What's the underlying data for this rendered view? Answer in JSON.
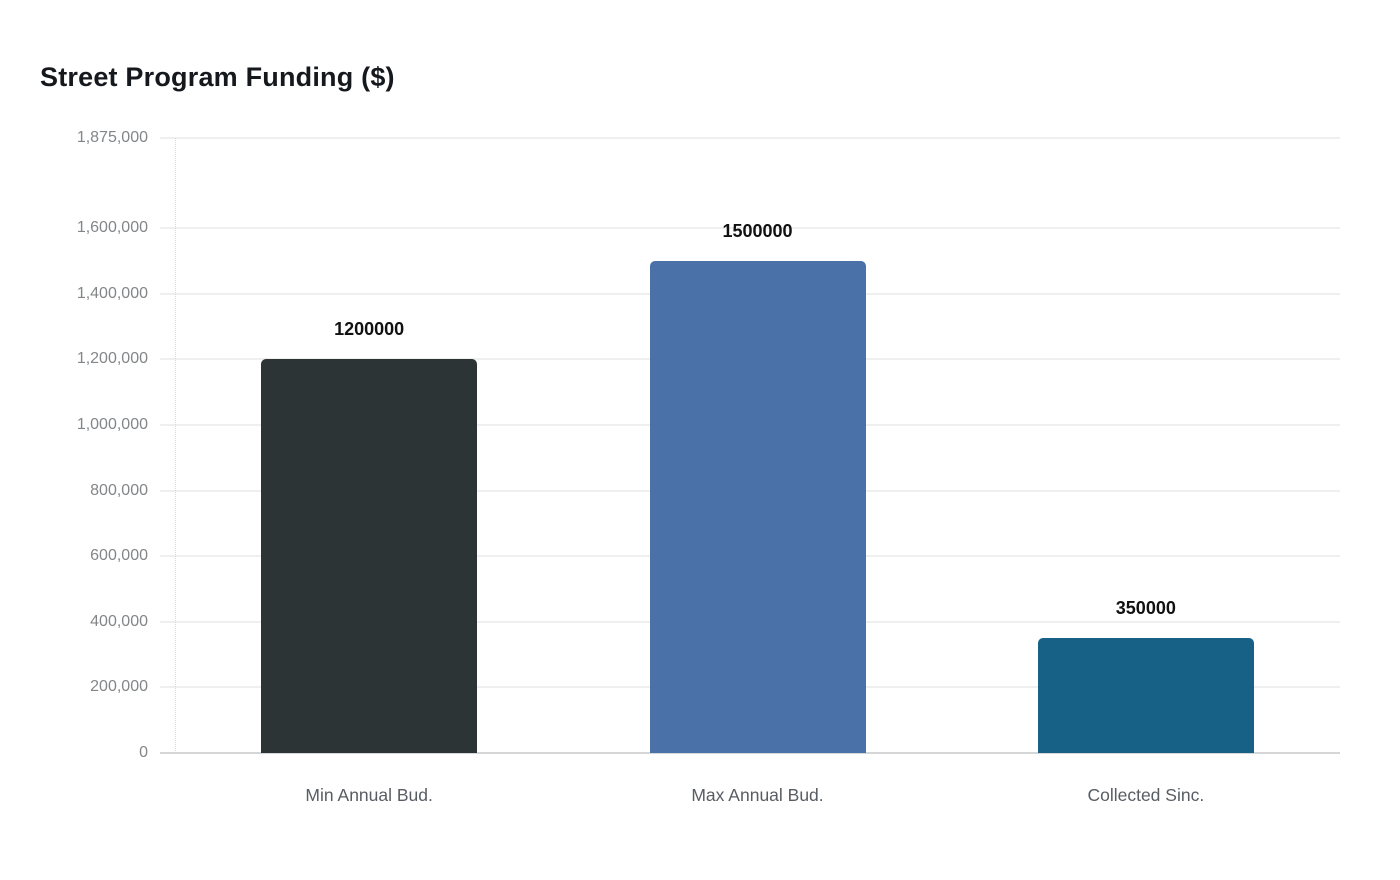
{
  "chart_data": {
    "type": "bar",
    "title": "Street Program Funding ($)",
    "categories": [
      "Min Annual Bud.",
      "Max Annual Bud.",
      "Collected Sinc."
    ],
    "values": [
      1200000,
      1500000,
      350000
    ],
    "value_labels": [
      "1200000",
      "1500000",
      "350000"
    ],
    "bar_colors": [
      "#2d3436",
      "#4a72a8",
      "#176086"
    ],
    "xlabel": "",
    "ylabel": "",
    "ylim": [
      0,
      1875000
    ],
    "yticks": [
      {
        "value": 0,
        "label": "0"
      },
      {
        "value": 200000,
        "label": "200,000"
      },
      {
        "value": 400000,
        "label": "400,000"
      },
      {
        "value": 600000,
        "label": "600,000"
      },
      {
        "value": 800000,
        "label": "800,000"
      },
      {
        "value": 1000000,
        "label": "1,000,000"
      },
      {
        "value": 1200000,
        "label": "1,200,000"
      },
      {
        "value": 1400000,
        "label": "1,400,000"
      },
      {
        "value": 1600000,
        "label": "1,600,000"
      },
      {
        "value": 1875000,
        "label": "1,875,000"
      }
    ],
    "grid": "horizontal",
    "legend": "none"
  }
}
